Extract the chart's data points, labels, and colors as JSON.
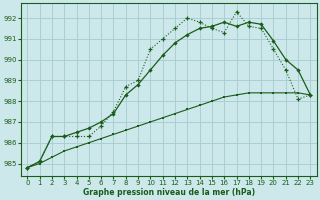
{
  "xlabel": "Graphe pression niveau de la mer (hPa)",
  "background_color": "#cce8ea",
  "grid_color": "#aacfd2",
  "line_color": "#1a5c1a",
  "xlim": [
    -0.5,
    23.5
  ],
  "ylim": [
    984.4,
    992.7
  ],
  "yticks": [
    985,
    986,
    987,
    988,
    989,
    990,
    991,
    992
  ],
  "xticks": [
    0,
    1,
    2,
    3,
    4,
    5,
    6,
    7,
    8,
    9,
    10,
    11,
    12,
    13,
    14,
    15,
    16,
    17,
    18,
    19,
    20,
    21,
    22,
    23
  ],
  "line_dotted_x": [
    0,
    1,
    2,
    3,
    4,
    5,
    6,
    7,
    8,
    9,
    10,
    11,
    12,
    13,
    14,
    15,
    16,
    17,
    18,
    19,
    20,
    21,
    22,
    23
  ],
  "line_dotted_y": [
    984.8,
    985.1,
    986.3,
    986.3,
    986.3,
    986.3,
    986.8,
    987.5,
    988.7,
    989.0,
    990.5,
    991.0,
    991.5,
    992.0,
    991.8,
    991.5,
    991.3,
    992.3,
    991.6,
    991.5,
    990.5,
    989.5,
    988.1,
    988.3
  ],
  "line_solid_x": [
    0,
    1,
    2,
    3,
    4,
    5,
    6,
    7,
    8,
    9,
    10,
    11,
    12,
    13,
    14,
    15,
    16,
    17,
    18,
    19,
    20,
    21,
    22,
    23
  ],
  "line_solid_y": [
    984.8,
    985.1,
    986.3,
    986.3,
    986.5,
    986.7,
    987.0,
    987.4,
    988.3,
    988.8,
    989.5,
    990.2,
    990.8,
    991.2,
    991.5,
    991.6,
    991.8,
    991.6,
    991.8,
    991.7,
    990.9,
    990.0,
    989.5,
    988.3
  ],
  "line_thin_x": [
    0,
    1,
    2,
    3,
    4,
    5,
    6,
    7,
    8,
    9,
    10,
    11,
    12,
    13,
    14,
    15,
    16,
    17,
    18,
    19,
    20,
    21,
    22,
    23
  ],
  "line_thin_y": [
    984.8,
    985.0,
    985.3,
    985.6,
    985.8,
    986.0,
    986.2,
    986.4,
    986.6,
    986.8,
    987.0,
    987.2,
    987.4,
    987.6,
    987.8,
    988.0,
    988.2,
    988.3,
    988.4,
    988.4,
    988.4,
    988.4,
    988.4,
    988.3
  ]
}
